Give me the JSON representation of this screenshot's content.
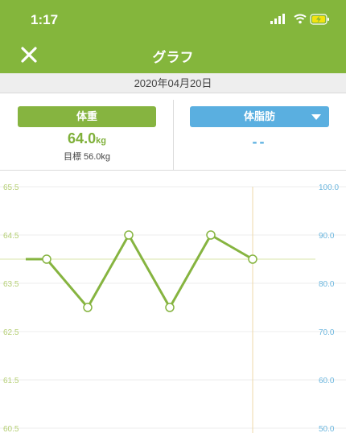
{
  "status": {
    "time": "1:17"
  },
  "nav": {
    "title": "グラフ",
    "close_icon": "close-icon"
  },
  "date": "2020年04月20日",
  "metrics": {
    "weight_tab": "体重",
    "weight_value": "64.0",
    "weight_unit": "kg",
    "goal_label": "目標 56.0kg",
    "fat_tab": "体脂肪",
    "fat_value": "--"
  },
  "colors": {
    "accent": "#84b63c",
    "fat": "#5aafe0"
  },
  "chart_data": {
    "type": "line",
    "y_left": {
      "ticks": [
        "65.5",
        "64.5",
        "63.5",
        "62.5",
        "61.5",
        "60.5"
      ],
      "range": [
        60.5,
        65.5
      ]
    },
    "y_right": {
      "ticks": [
        "100.0",
        "90.0",
        "80.0",
        "70.0",
        "60.0",
        "50.0"
      ],
      "range": [
        50,
        100
      ]
    },
    "series": [
      {
        "values": [
          64.0,
          64.0,
          63.0,
          64.5,
          63.0,
          64.5,
          64.0
        ]
      }
    ],
    "goal_line": 64.0,
    "grid": true
  }
}
